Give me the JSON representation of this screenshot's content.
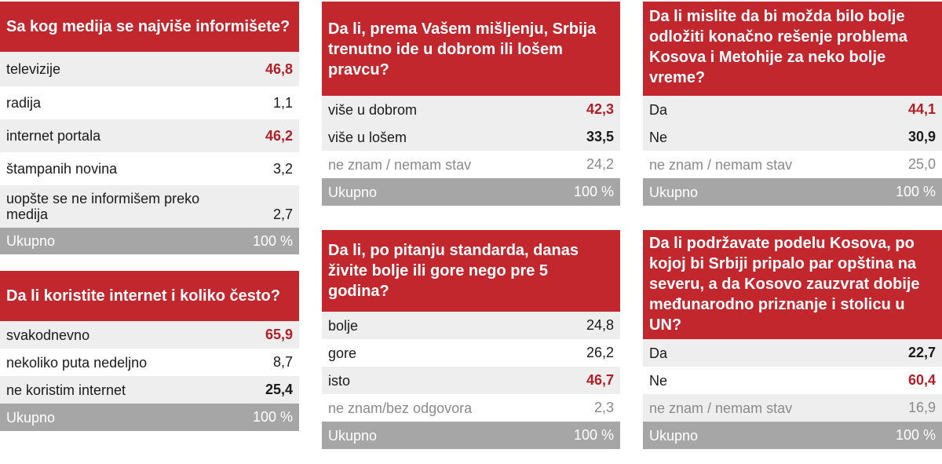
{
  "colors": {
    "accent": "#c1272d",
    "highlight": "#b01f26",
    "total_bg": "#a6a6a6",
    "alt_row": "#eeeeee"
  },
  "panels": [
    {
      "title": "Sa kog medija se najviše informišete?",
      "rows": [
        {
          "label": "televizije",
          "value": "46,8"
        },
        {
          "label": "radija",
          "value": "1,1"
        },
        {
          "label": "internet portala",
          "value": "46,2"
        },
        {
          "label": "štampanih novina",
          "value": "3,2"
        },
        {
          "label": "uopšte se ne informišem preko medija",
          "value": "2,7"
        }
      ],
      "total": {
        "label": "Ukupno",
        "value": "100 %"
      }
    },
    {
      "title": "Da li koristite internet i koliko često?",
      "rows": [
        {
          "label": "svakodnevno",
          "value": "65,9"
        },
        {
          "label": "nekoliko puta nedeljno",
          "value": "8,7"
        },
        {
          "label": "ne koristim internet",
          "value": "25,4"
        }
      ],
      "total": {
        "label": "Ukupno",
        "value": "100 %"
      }
    },
    {
      "title": "Da li, prema Vašem mišljenju, Srbija trenutno ide u dobrom ili lošem pravcu?",
      "rows": [
        {
          "label": "više u dobrom",
          "value": "42,3"
        },
        {
          "label": "više u lošem",
          "value": "33,5"
        },
        {
          "label": "ne znam / nemam stav",
          "value": "24,2"
        }
      ],
      "total": {
        "label": "Ukupno",
        "value": "100 %"
      }
    },
    {
      "title": "Da li, po pitanju standarda, danas živite bolje ili gore nego pre 5 godina?",
      "rows": [
        {
          "label": "bolje",
          "value": "24,8"
        },
        {
          "label": "gore",
          "value": "26,2"
        },
        {
          "label": "isto",
          "value": "46,7"
        },
        {
          "label": "ne znam/bez odgovora",
          "value": "2,3"
        }
      ],
      "total": {
        "label": "Ukupno",
        "value": "100 %"
      }
    },
    {
      "title": "Da li mislite da bi možda bilo bolje odložiti  konačno rešenje problema Kosova i Metohije za neko bolje vreme?",
      "rows": [
        {
          "label": "Da",
          "value": "44,1"
        },
        {
          "label": "Ne",
          "value": "30,9"
        },
        {
          "label": "ne znam / nemam stav",
          "value": "25,0"
        }
      ],
      "total": {
        "label": "Ukupno",
        "value": "100 %"
      }
    },
    {
      "title": "Da li podržavate podelu Kosova, po kojoj bi Srbiji pripalo par opština na severu, a da Kosovo zauzvrat dobije međunarodno priznanje i stolicu u UN?",
      "rows": [
        {
          "label": "Da",
          "value": "22,7"
        },
        {
          "label": "Ne",
          "value": "60,4"
        },
        {
          "label": "ne znam / nemam stav",
          "value": "16,9"
        }
      ],
      "total": {
        "label": "Ukupno",
        "value": "100 %"
      }
    }
  ]
}
